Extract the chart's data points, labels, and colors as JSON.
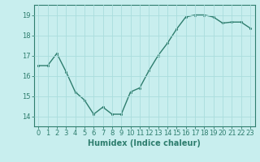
{
  "x": [
    0,
    1,
    2,
    3,
    4,
    5,
    6,
    7,
    8,
    9,
    10,
    11,
    12,
    13,
    14,
    15,
    16,
    17,
    18,
    19,
    20,
    21,
    22,
    23
  ],
  "y": [
    16.5,
    16.5,
    17.1,
    16.2,
    15.2,
    14.8,
    14.1,
    14.45,
    14.1,
    14.1,
    15.2,
    15.4,
    16.25,
    17.0,
    17.6,
    18.3,
    18.9,
    19.0,
    19.0,
    18.9,
    18.6,
    18.65,
    18.65,
    18.35
  ],
  "line_color": "#2e7d6e",
  "marker_color": "#2e7d6e",
  "bg_color": "#c8eeee",
  "grid_color": "#aadddd",
  "axis_color": "#2e7d6e",
  "xlabel": "Humidex (Indice chaleur)",
  "xlim": [
    -0.5,
    23.5
  ],
  "ylim": [
    13.5,
    19.5
  ],
  "yticks": [
    14,
    15,
    16,
    17,
    18,
    19
  ],
  "xticks": [
    0,
    1,
    2,
    3,
    4,
    5,
    6,
    7,
    8,
    9,
    10,
    11,
    12,
    13,
    14,
    15,
    16,
    17,
    18,
    19,
    20,
    21,
    22,
    23
  ],
  "xtick_labels": [
    "0",
    "1",
    "2",
    "3",
    "4",
    "5",
    "6",
    "7",
    "8",
    "9",
    "10",
    "11",
    "12",
    "13",
    "14",
    "15",
    "16",
    "17",
    "18",
    "19",
    "20",
    "21",
    "22",
    "23"
  ],
  "font_size_axis": 6,
  "font_size_label": 7,
  "linewidth": 1.0,
  "markersize": 2.5
}
